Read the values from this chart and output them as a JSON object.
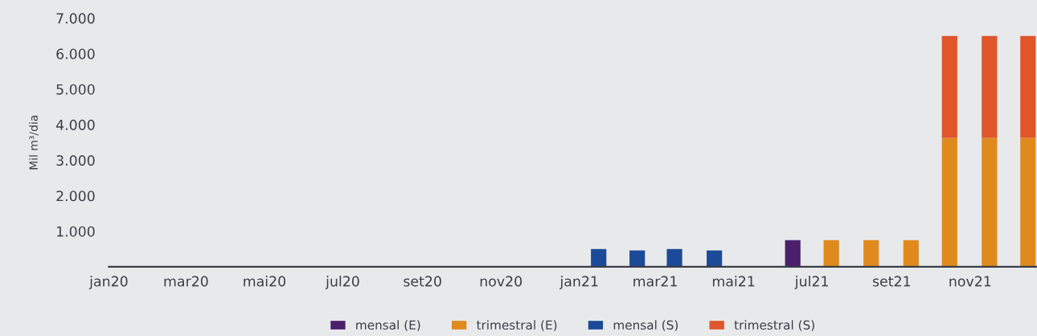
{
  "chart_data": {
    "type": "bar",
    "ylabel": "Mil m³/dia",
    "stacked": true,
    "x": [
      "2021-01-16",
      "2021-02-15",
      "2021-03-16",
      "2021-04-16",
      "2021-05-16",
      "2021-06-16",
      "2021-07-16",
      "2021-08-16",
      "2021-09-16",
      "2021-10-16",
      "2021-11-16",
      "2021-12-16"
    ],
    "series": [
      {
        "name": "mensal (E)",
        "color": "#4b1f6b",
        "values": [
          null,
          null,
          null,
          null,
          null,
          750,
          null,
          null,
          null,
          null,
          null,
          null
        ]
      },
      {
        "name": "trimestral (E)",
        "color": "#e08a1e",
        "values": [
          null,
          null,
          null,
          null,
          null,
          null,
          750,
          750,
          750,
          3630,
          3630,
          3630
        ]
      },
      {
        "name": "mensal (S)",
        "color": "#1b4b98",
        "values": [
          500,
          460,
          500,
          460,
          null,
          null,
          null,
          null,
          null,
          null,
          null,
          null
        ]
      },
      {
        "name": "trimestral (S)",
        "color": "#e0552a",
        "values": [
          null,
          null,
          null,
          null,
          null,
          null,
          null,
          null,
          null,
          2870,
          2870,
          2870
        ]
      }
    ],
    "xlim": [
      "2020-01-01",
      "2021-12-23"
    ],
    "xticks": [
      {
        "value": "2020-01-01",
        "label": "jan20"
      },
      {
        "value": "2020-03-01",
        "label": "mar20"
      },
      {
        "value": "2020-05-01",
        "label": "mai20"
      },
      {
        "value": "2020-07-01",
        "label": "jul20"
      },
      {
        "value": "2020-09-01",
        "label": "set20"
      },
      {
        "value": "2020-11-01",
        "label": "nov20"
      },
      {
        "value": "2021-01-01",
        "label": "jan21"
      },
      {
        "value": "2021-03-01",
        "label": "mar21"
      },
      {
        "value": "2021-05-01",
        "label": "mai21"
      },
      {
        "value": "2021-07-01",
        "label": "jul21"
      },
      {
        "value": "2021-09-01",
        "label": "set21"
      },
      {
        "value": "2021-11-01",
        "label": "nov21"
      }
    ],
    "ylim": [
      0,
      7000
    ],
    "yticks": [
      {
        "value": 1000,
        "label": "1.000"
      },
      {
        "value": 2000,
        "label": "2.000"
      },
      {
        "value": 3000,
        "label": "3.000"
      },
      {
        "value": 4000,
        "label": "4.000"
      },
      {
        "value": 5000,
        "label": "5.000"
      },
      {
        "value": 6000,
        "label": "6.000"
      },
      {
        "value": 7000,
        "label": "7.000"
      }
    ],
    "grid": false,
    "legend": "bottom"
  }
}
